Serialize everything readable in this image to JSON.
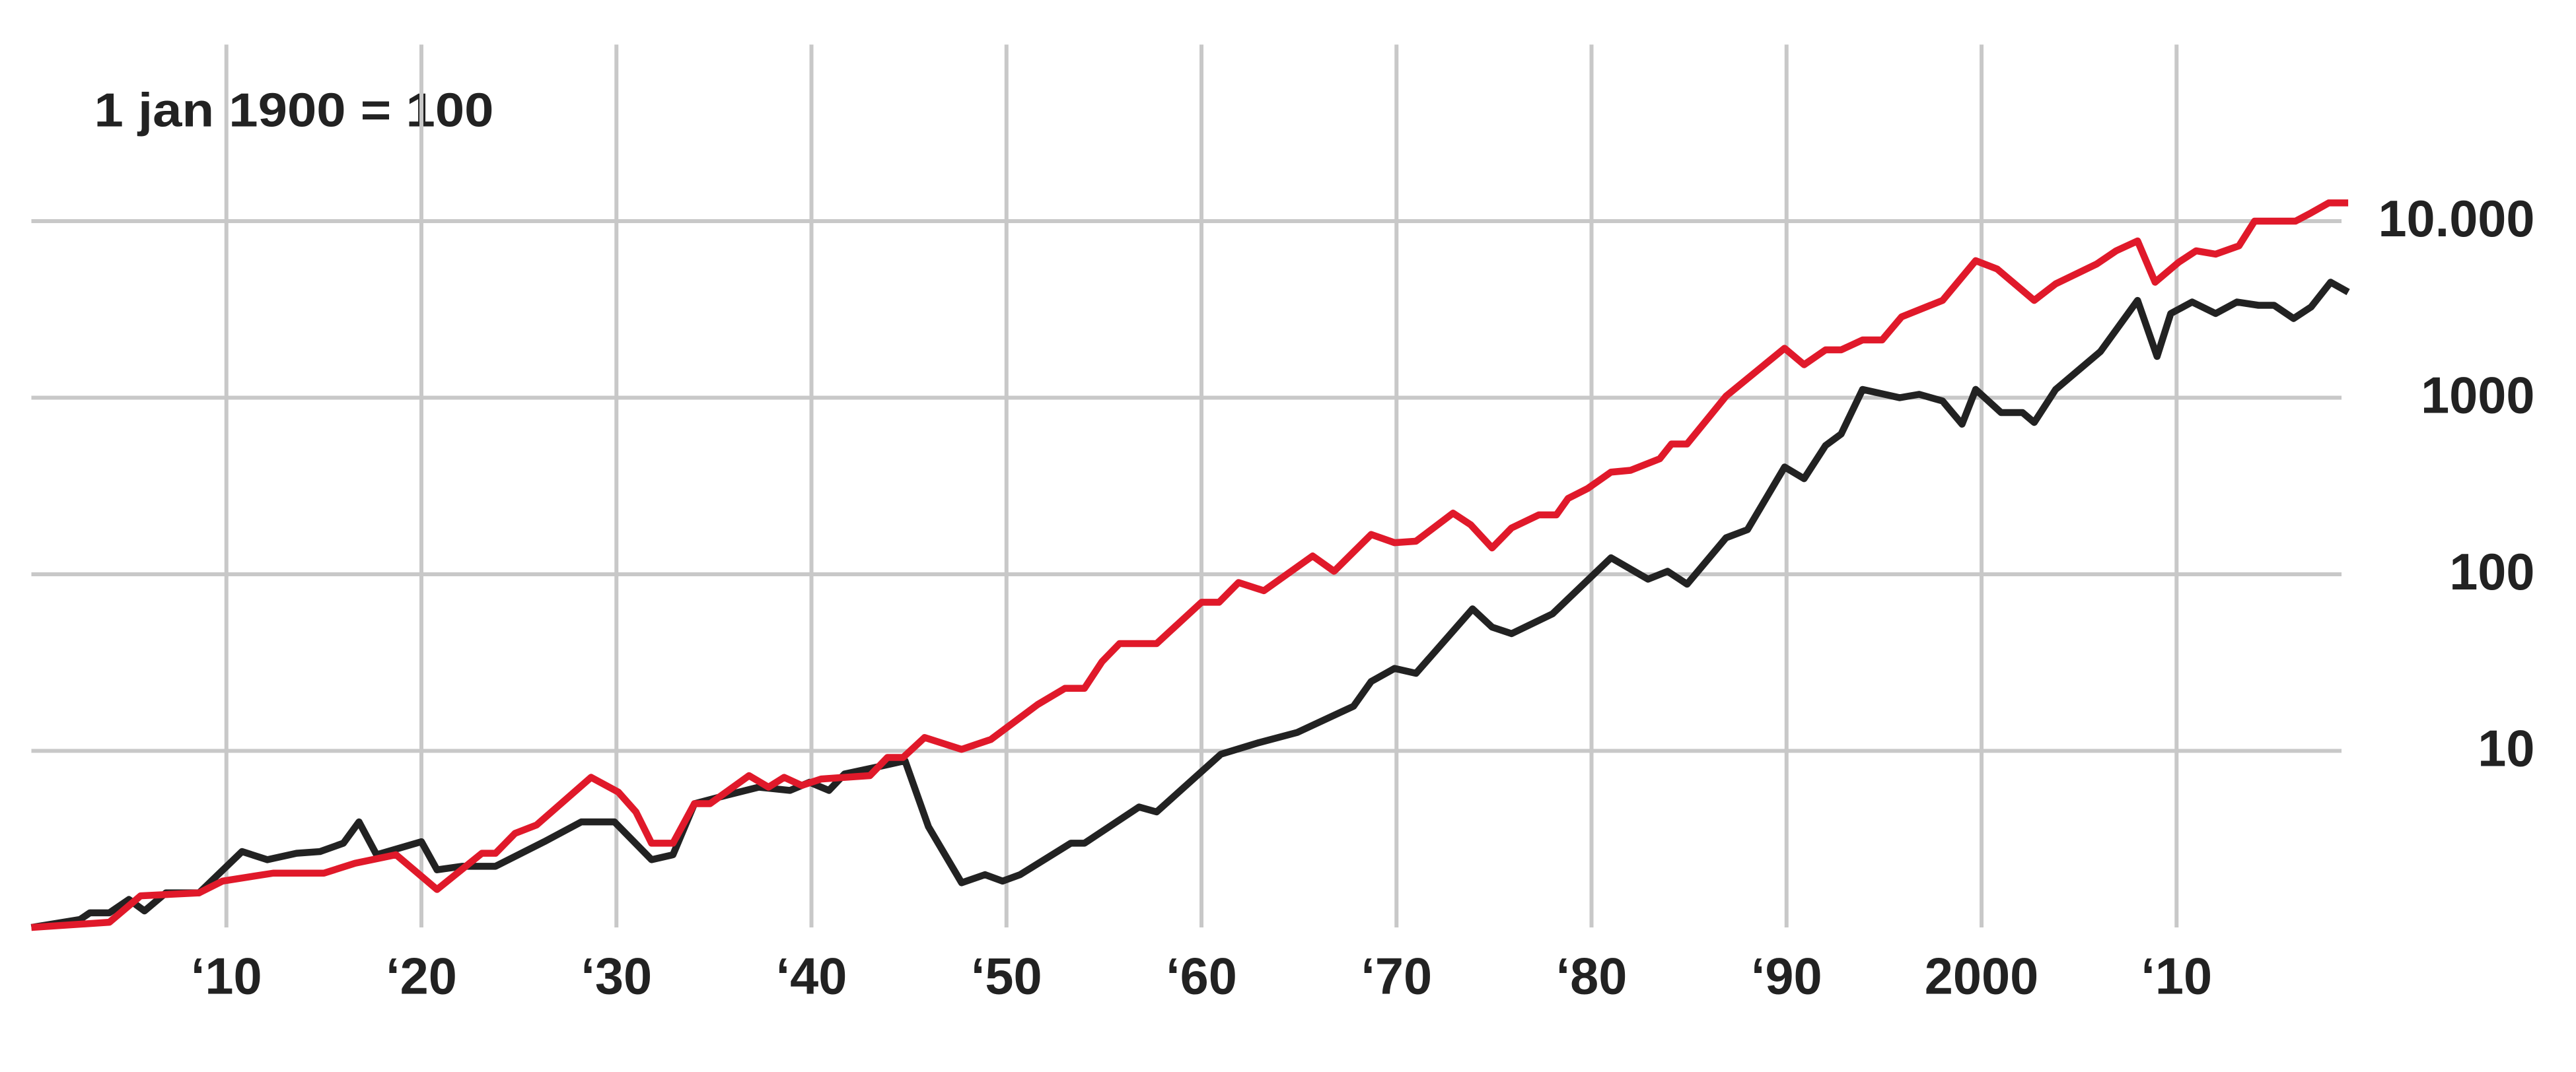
{
  "chart_data": {
    "type": "line",
    "annotation": "1 jan 1900 = 100",
    "log_y": true,
    "grid": true,
    "xlim": [
      1900,
      2019
    ],
    "xticks": [
      {
        "value": 1910,
        "label": "‘10"
      },
      {
        "value": 1920,
        "label": "‘20"
      },
      {
        "value": 1930,
        "label": "‘30"
      },
      {
        "value": 1940,
        "label": "‘40"
      },
      {
        "value": 1950,
        "label": "‘50"
      },
      {
        "value": 1960,
        "label": "‘60"
      },
      {
        "value": 1970,
        "label": "‘70"
      },
      {
        "value": 1980,
        "label": "‘80"
      },
      {
        "value": 1990,
        "label": "‘90"
      },
      2000,
      {
        "value": 2010,
        "label": "‘10"
      }
    ],
    "ylim": [
      1,
      100000
    ],
    "yticks": [
      10,
      100,
      1000,
      {
        "value": 10000,
        "label": "10.000"
      }
    ],
    "series": [
      {
        "color": "#222222",
        "x": [
          1900,
          1902.5,
          1903,
          1904,
          1905,
          1905.8,
          1906.9,
          1908.6,
          1910.8,
          1912.1,
          1913.6,
          1914.8,
          1916,
          1916.8,
          1917.7,
          1920,
          1920.8,
          1922.1,
          1923.8,
          1926.3,
          1928.2,
          1929.9,
          1931.8,
          1932.9,
          1934,
          1935.6,
          1937.3,
          1938.9,
          1939.9,
          1940.9,
          1941.7,
          1943.3,
          1944.8,
          1946,
          1947.7,
          1948.9,
          1949.8,
          1950.7,
          1953.3,
          1954,
          1956.8,
          1957.7,
          1961,
          1962.9,
          1964.9,
          1967.8,
          1968.7,
          1969.9,
          1971,
          1973.9,
          1974.9,
          1975.9,
          1978,
          1981,
          1982.9,
          1983.9,
          1984.9,
          1986.9,
          1988,
          1989.9,
          1990.9,
          1992,
          1992.8,
          1993.9,
          1995.8,
          1996.8,
          1998,
          1999,
          1999.7,
          2001,
          2002.1,
          2002.7,
          2003.8,
          2006.1,
          2008,
          2009,
          2009.7,
          2010.8,
          2012,
          2013.1,
          2014.2,
          2015,
          2016,
          2016.9,
          2017.9,
          2018.8
        ],
        "values": [
          1,
          1.11,
          1.21,
          1.21,
          1.44,
          1.24,
          1.57,
          1.57,
          2.69,
          2.42,
          2.63,
          2.69,
          3.0,
          3.96,
          2.58,
          3.06,
          2.12,
          2.22,
          2.22,
          3.06,
          3.96,
          3.96,
          2.42,
          2.58,
          5.02,
          5.59,
          6.23,
          5.97,
          6.64,
          5.97,
          7.4,
          8.07,
          8.79,
          3.72,
          1.79,
          1.99,
          1.83,
          1.99,
          3.0,
          3.0,
          4.81,
          4.51,
          9.58,
          11.1,
          12.7,
          17.9,
          24.7,
          29.3,
          27.5,
          63.7,
          50.2,
          46.1,
          59.7,
          124,
          93.8,
          104,
          87.9,
          161,
          179,
          405,
          348,
          536,
          623,
          1114,
          1000,
          1045,
          958,
          708,
          1114,
          824,
          824,
          724,
          1114,
          1827,
          3557,
          1713,
          2997,
          3483,
          2997,
          3483,
          3337,
          3337,
          2810,
          3266,
          4508,
          3964
        ]
      },
      {
        "color": "#e0192a",
        "x": [
          1900,
          1904,
          1905.6,
          1908.6,
          1909.8,
          1912.4,
          1915,
          1916.6,
          1918.7,
          1920.8,
          1923.1,
          1923.8,
          1924.8,
          1925.9,
          1928.7,
          1930.1,
          1931,
          1931.8,
          1932.9,
          1934,
          1934.8,
          1936.8,
          1937.8,
          1938.6,
          1939.5,
          1940.5,
          1943,
          1943.9,
          1944.7,
          1945.8,
          1947.7,
          1949.2,
          1951.6,
          1953,
          1954,
          1954.9,
          1955.8,
          1957.7,
          1960,
          1960.9,
          1961.9,
          1963.2,
          1965.7,
          1966.8,
          1968.7,
          1969.9,
          1971,
          1972.9,
          1973.8,
          1974.9,
          1975.9,
          1977.3,
          1978.2,
          1978.8,
          1979.8,
          1981,
          1982,
          1983.5,
          1984.1,
          1984.9,
          1986.9,
          1989.9,
          1990.9,
          1992,
          1992.8,
          1993.9,
          1994.9,
          1995.9,
          1998,
          1999.7,
          2000.8,
          2002.7,
          2003.8,
          2005.9,
          2006.9,
          2008,
          2008.9,
          2010.1,
          2011,
          2012,
          2013.2,
          2014,
          2016.1,
          2016.9,
          2017.8,
          2018.8
        ],
        "values": [
          1,
          1.07,
          1.51,
          1.57,
          1.83,
          2.03,
          2.03,
          2.31,
          2.58,
          1.64,
          2.63,
          2.63,
          3.41,
          3.8,
          7.08,
          5.84,
          4.51,
          3.0,
          3.0,
          5.02,
          5.02,
          7.24,
          6.23,
          7.08,
          6.37,
          6.93,
          7.24,
          9.18,
          9.18,
          11.9,
          10.2,
          11.6,
          18.3,
          22.6,
          22.6,
          32,
          40.5,
          40.5,
          69.4,
          69.4,
          89.8,
          80.7,
          127,
          104,
          168,
          151,
          154,
          222,
          191,
          141,
          183,
          217,
          217,
          269,
          306,
          379,
          388,
          451,
          547,
          547,
          1021,
          1906,
          1538,
          1866,
          1866,
          2124,
          2124,
          2871,
          3557,
          5970,
          5356,
          3557,
          4414,
          5715,
          6790,
          7726,
          4508,
          5840,
          6790,
          6502,
          7244,
          10000,
          10000,
          11141,
          12681,
          12681
        ]
      }
    ]
  }
}
